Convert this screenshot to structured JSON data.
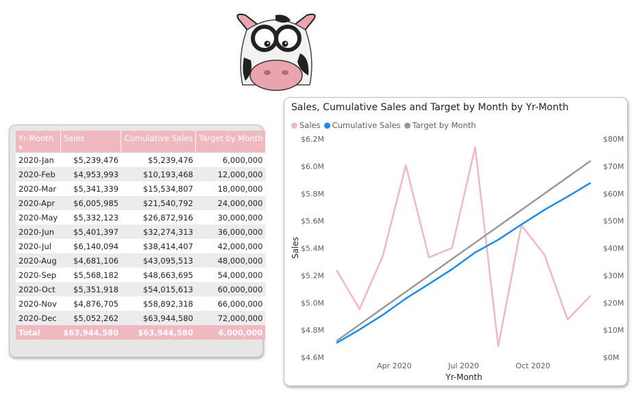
{
  "table": {
    "headers": {
      "yr_month": "Yr-Month",
      "sales": "Sales",
      "cumulative": "Cumulative Sales",
      "target": "Target by Month"
    },
    "rows": [
      {
        "month": "2020-Jan",
        "sales": "$5,239,476",
        "cumulative": "$5,239,476",
        "target": "6,000,000"
      },
      {
        "month": "2020-Feb",
        "sales": "$4,953,993",
        "cumulative": "$10,193,468",
        "target": "12,000,000"
      },
      {
        "month": "2020-Mar",
        "sales": "$5,341,339",
        "cumulative": "$15,534,807",
        "target": "18,000,000"
      },
      {
        "month": "2020-Apr",
        "sales": "$6,005,985",
        "cumulative": "$21,540,792",
        "target": "24,000,000"
      },
      {
        "month": "2020-May",
        "sales": "$5,332,123",
        "cumulative": "$26,872,916",
        "target": "30,000,000"
      },
      {
        "month": "2020-Jun",
        "sales": "$5,401,397",
        "cumulative": "$32,274,313",
        "target": "36,000,000"
      },
      {
        "month": "2020-Jul",
        "sales": "$6,140,094",
        "cumulative": "$38,414,407",
        "target": "42,000,000"
      },
      {
        "month": "2020-Aug",
        "sales": "$4,681,106",
        "cumulative": "$43,095,513",
        "target": "48,000,000"
      },
      {
        "month": "2020-Sep",
        "sales": "$5,568,182",
        "cumulative": "$48,663,695",
        "target": "54,000,000"
      },
      {
        "month": "2020-Oct",
        "sales": "$5,351,918",
        "cumulative": "$54,015,613",
        "target": "60,000,000"
      },
      {
        "month": "2020-Nov",
        "sales": "$4,876,705",
        "cumulative": "$58,892,318",
        "target": "66,000,000"
      },
      {
        "month": "2020-Dec",
        "sales": "$5,052,262",
        "cumulative": "$63,944,580",
        "target": "72,000,000"
      }
    ],
    "total": {
      "label": "Total",
      "sales": "$63,944,580",
      "cumulative": "$63,944,580",
      "target": "6,000,000"
    }
  },
  "colors": {
    "sales": "#f0b9bf",
    "cumulative": "#118dff",
    "target": "#999999",
    "header_bg": "#f0b9bf"
  },
  "chart_data": {
    "type": "line",
    "title": "Sales, Cumulative Sales and Target by Month by Yr-Month",
    "xlabel": "Yr-Month",
    "ylabel": "Sales",
    "legend_position": "top-left",
    "x": [
      "2020-01",
      "2020-02",
      "2020-03",
      "2020-04",
      "2020-05",
      "2020-06",
      "2020-07",
      "2020-08",
      "2020-09",
      "2020-10",
      "2020-11",
      "2020-12"
    ],
    "x_ticks": [
      {
        "label": "Apr 2020",
        "index": 2.5
      },
      {
        "label": "Jul 2020",
        "index": 5.5
      },
      {
        "label": "Oct 2020",
        "index": 8.5
      }
    ],
    "ylim": [
      4600000,
      6200000
    ],
    "y_ticks": [
      "$4.6M",
      "$4.8M",
      "$5.0M",
      "$5.2M",
      "$5.4M",
      "$5.6M",
      "$5.8M",
      "$6.0M",
      "$6.2M"
    ],
    "y2lim": [
      0,
      80000000
    ],
    "y2_ticks": [
      "$0M",
      "$10M",
      "$20M",
      "$30M",
      "$40M",
      "$50M",
      "$60M",
      "$70M",
      "$80M"
    ],
    "series": [
      {
        "name": "Sales",
        "axis": "left",
        "values": [
          5239476,
          4953993,
          5341339,
          6005985,
          5332123,
          5401397,
          6140094,
          4681106,
          5568182,
          5351918,
          4876705,
          5052262
        ]
      },
      {
        "name": "Cumulative Sales",
        "axis": "right",
        "values": [
          5239476,
          10193468,
          15534807,
          21540792,
          26872916,
          32274313,
          38414407,
          43095513,
          48663695,
          54015613,
          58892318,
          63944580
        ]
      },
      {
        "name": "Target by Month",
        "axis": "right",
        "values": [
          6000000,
          12000000,
          18000000,
          24000000,
          30000000,
          36000000,
          42000000,
          48000000,
          54000000,
          60000000,
          66000000,
          72000000
        ]
      }
    ]
  }
}
